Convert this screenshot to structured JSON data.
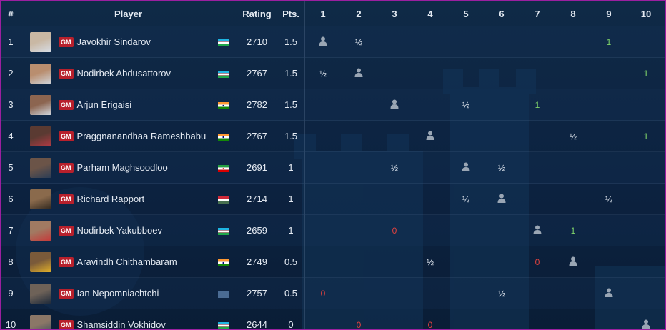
{
  "header": {
    "num": "#",
    "player": "Player",
    "rating": "Rating",
    "pts": "Pts.",
    "rounds": [
      "1",
      "2",
      "3",
      "4",
      "5",
      "6",
      "7",
      "8",
      "9",
      "10"
    ]
  },
  "colors": {
    "win": "#7fd36a",
    "loss": "#e0413e",
    "draw": "#e4eaf2",
    "badge": "#b8202c",
    "frame": "#9b1fa0"
  },
  "players": [
    {
      "num": "1",
      "title": "GM",
      "name": "Javokhir Sindarov",
      "country": "Uzbekistan",
      "rating": "2710",
      "pts": "1.5",
      "avatar": [
        "#c9b8a4",
        "#d7dde6"
      ],
      "results": [
        "self",
        "½",
        "",
        "",
        "",
        "",
        "",
        "",
        "1",
        ""
      ]
    },
    {
      "num": "2",
      "title": "GM",
      "name": "Nodirbek Abdusattorov",
      "country": "Uzbekistan",
      "rating": "2767",
      "pts": "1.5",
      "avatar": [
        "#b98e6f",
        "#cfd3d8"
      ],
      "results": [
        "½",
        "self",
        "",
        "",
        "",
        "",
        "",
        "",
        "",
        "1"
      ]
    },
    {
      "num": "3",
      "title": "GM",
      "name": "Arjun Erigaisi",
      "country": "India",
      "rating": "2782",
      "pts": "1.5",
      "avatar": [
        "#8c6550",
        "#d2d8df"
      ],
      "results": [
        "",
        "",
        "self",
        "",
        "½",
        "",
        "1",
        "",
        "",
        ""
      ]
    },
    {
      "num": "4",
      "title": "GM",
      "name": "Praggnanandhaa Rameshbabu",
      "country": "India",
      "rating": "2767",
      "pts": "1.5",
      "avatar": [
        "#5a3a32",
        "#b23a44"
      ],
      "results": [
        "",
        "",
        "",
        "self",
        "",
        "",
        "",
        "½",
        "",
        "1"
      ]
    },
    {
      "num": "5",
      "title": "GM",
      "name": "Parham Maghsoodloo",
      "country": "Iran",
      "rating": "2691",
      "pts": "1",
      "avatar": [
        "#6b5448",
        "#2c3d55"
      ],
      "results": [
        "",
        "",
        "½",
        "",
        "self",
        "½",
        "",
        "",
        "",
        ""
      ]
    },
    {
      "num": "6",
      "title": "GM",
      "name": "Richard Rapport",
      "country": "Hungary",
      "rating": "2714",
      "pts": "1",
      "avatar": [
        "#8a6a4c",
        "#31281f"
      ],
      "results": [
        "",
        "",
        "",
        "",
        "½",
        "self",
        "",
        "",
        "½",
        ""
      ]
    },
    {
      "num": "7",
      "title": "GM",
      "name": "Nodirbek Yakubboev",
      "country": "Uzbekistan",
      "rating": "2659",
      "pts": "1",
      "avatar": [
        "#a17a62",
        "#c63a3a"
      ],
      "results": [
        "",
        "",
        "0",
        "",
        "",
        "",
        "self",
        "1",
        "",
        ""
      ]
    },
    {
      "num": "8",
      "title": "GM",
      "name": "Aravindh Chithambaram",
      "country": "India",
      "rating": "2749",
      "pts": "0.5",
      "avatar": [
        "#7a5a3a",
        "#e2b02a"
      ],
      "results": [
        "",
        "",
        "",
        "½",
        "",
        "",
        "0",
        "self",
        "",
        ""
      ]
    },
    {
      "num": "9",
      "title": "GM",
      "name": "Ian Nepomniachtchi",
      "country": "FIDE",
      "rating": "2757",
      "pts": "0.5",
      "avatar": [
        "#6e6258",
        "#1e2a3a"
      ],
      "results": [
        "0",
        "",
        "",
        "",
        "",
        "½",
        "",
        "",
        "self",
        ""
      ]
    },
    {
      "num": "10",
      "title": "GM",
      "name": "Shamsiddin Vokhidov",
      "country": "Uzbekistan",
      "rating": "2644",
      "pts": "0",
      "avatar": [
        "#8b7767",
        "#3c4a5c"
      ],
      "results": [
        "",
        "0",
        "",
        "0",
        "",
        "",
        "",
        "",
        "",
        "self"
      ]
    }
  ]
}
